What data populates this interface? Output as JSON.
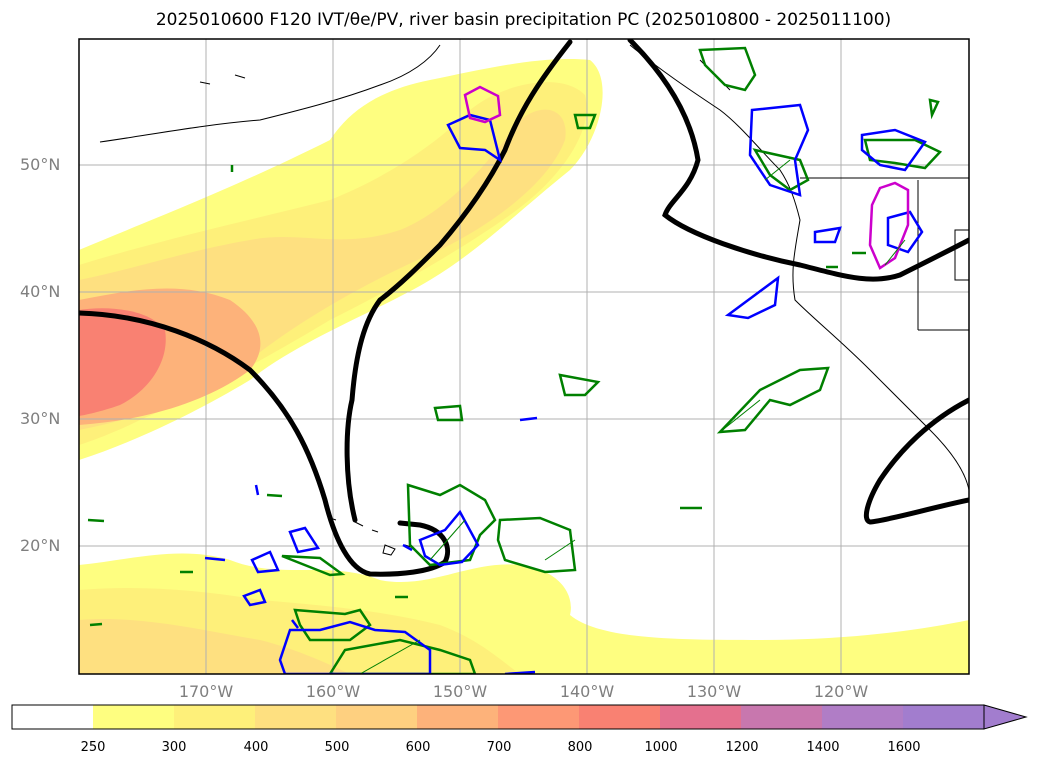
{
  "title": "2025010600 F120 IVT/θe/PV, river basin precipitation PC (2025010800 - 2025011100)",
  "map": {
    "lat_labels": [
      "50°N",
      "40°N",
      "30°N",
      "20°N"
    ],
    "lon_labels": [
      "170°W",
      "160°W",
      "150°W",
      "140°W",
      "130°W",
      "120°W"
    ],
    "lat_range": [
      10,
      60
    ],
    "lon_range": [
      -180,
      -110
    ],
    "grid": true
  },
  "colorbar": {
    "ticks": [
      "250",
      "300",
      "400",
      "500",
      "600",
      "700",
      "800",
      "1000",
      "1200",
      "1400",
      "1600"
    ],
    "colors": [
      "#ffffff",
      "#fefe80",
      "#fef07a",
      "#fee080",
      "#fed080",
      "#fdb27a",
      "#fd9875",
      "#f98172",
      "#e4708e",
      "#c877ae",
      "#b07dc6",
      "#a27dce"
    ],
    "extend": "max"
  },
  "colors": {
    "pv_contour": "#000000",
    "theta_e_plus": "#008000",
    "theta_e_minus": "#0000ff",
    "pc_contour": "#cc00cc"
  }
}
